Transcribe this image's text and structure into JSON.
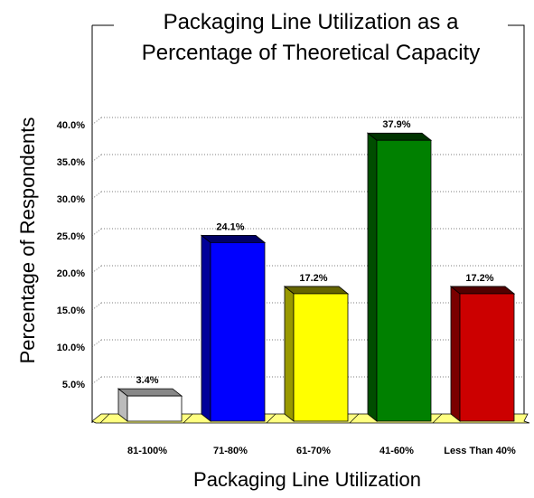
{
  "chart_data": {
    "type": "bar",
    "title": "Packaging Line Utilization as a Percentage of Theoretical Capacity",
    "title_lines": [
      "Packaging Line Utilization as a",
      "Percentage of Theoretical Capacity"
    ],
    "xlabel": "Packaging Line Utilization",
    "ylabel": "Percentage of Respondents",
    "categories": [
      "81-100%",
      "71-80%",
      "61-70%",
      "41-60%",
      "Less Than 40%"
    ],
    "values": [
      3.4,
      24.1,
      17.2,
      37.9,
      17.2
    ],
    "data_labels": [
      "3.4%",
      "24.1%",
      "17.2%",
      "37.9%",
      "17.2%"
    ],
    "ylim": [
      0,
      45
    ],
    "yticks": [
      5,
      10,
      15,
      20,
      25,
      30,
      35,
      40
    ],
    "ytick_labels": [
      "5.0%",
      "10.0%",
      "15.0%",
      "20.0%",
      "25.0%",
      "30.0%",
      "35.0%",
      "40.0%"
    ],
    "bar_colors": [
      "#ffffff",
      "#0000ff",
      "#ffff00",
      "#008000",
      "#cc0000"
    ],
    "floor_color": "#ffff80",
    "grid": true,
    "legend": "none",
    "style": "3d"
  }
}
